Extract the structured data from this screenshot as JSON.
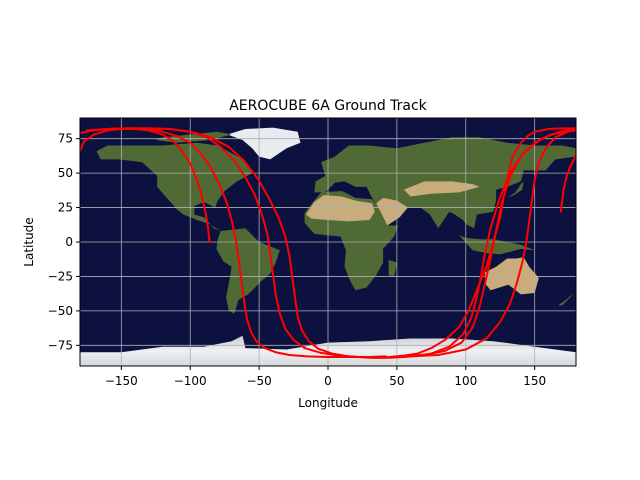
{
  "chart_data": {
    "type": "line",
    "title": "AEROCUBE 6A Ground Track",
    "xlabel": "Longitude",
    "ylabel": "Latitude",
    "xlim": [
      -180,
      180
    ],
    "ylim": [
      -90,
      90
    ],
    "xticks": [
      -150,
      -100,
      -50,
      0,
      50,
      100,
      150
    ],
    "yticks": [
      -75,
      -50,
      -25,
      0,
      25,
      50,
      75
    ],
    "grid": true,
    "background": "world satellite map (Blue Marble)",
    "colors": {
      "track": "#ff0000",
      "ocean": "#0c1140",
      "land": "#4f6a34",
      "desert": "#c9ac7c",
      "ice": "#e8ecf0",
      "grid": "#b0b0b0"
    },
    "series": [
      {
        "x": [
          -180,
          -177,
          -170,
          -160,
          -150,
          -140,
          -130,
          -120,
          -112,
          -106,
          -100,
          -96,
          -92,
          -89,
          -87,
          -86
        ],
        "y": [
          66,
          73,
          78,
          81,
          82,
          82,
          81,
          78,
          73,
          66,
          57,
          47,
          35,
          22,
          10,
          0
        ]
      },
      {
        "x": [
          -180,
          -170,
          -160,
          -150,
          -140,
          -130,
          -120,
          -110,
          -100,
          -92,
          -85,
          -79,
          -74,
          -70,
          -67,
          -65,
          -63,
          -61,
          -59,
          -56,
          -52,
          -46,
          -38,
          -28,
          -15,
          0,
          15,
          30,
          42
        ],
        "y": [
          79,
          81,
          82,
          82.5,
          82.5,
          82,
          80,
          77,
          72,
          64,
          54,
          42,
          30,
          16,
          2,
          -12,
          -27,
          -42,
          -55,
          -65,
          -72,
          -77,
          -80,
          -82,
          -83,
          -83.5,
          -83.5,
          -83.5,
          -83
        ]
      },
      {
        "x": [
          -175,
          -160,
          -145,
          -130,
          -115,
          -100,
          -88,
          -78,
          -68,
          -60,
          -53,
          -48,
          -44,
          -42,
          -40,
          -38,
          -35,
          -31,
          -25,
          -17,
          -5,
          8,
          22,
          35,
          45,
          55,
          65,
          75,
          85,
          95,
          102,
          108,
          115,
          120,
          125,
          128,
          131,
          134,
          140,
          145,
          150,
          160,
          170,
          180
        ],
        "y": [
          81,
          82,
          82.5,
          82.5,
          82,
          80,
          76,
          69,
          59,
          47,
          34,
          20,
          6,
          -8,
          -23,
          -38,
          -52,
          -63,
          -71,
          -77,
          -80.5,
          -82.5,
          -83.5,
          -84,
          -83.5,
          -82.5,
          -81,
          -77,
          -71,
          -62,
          -50,
          -35,
          -18,
          0,
          18,
          35,
          50,
          62,
          72,
          77,
          80,
          82,
          82.5,
          82.5
        ]
      },
      {
        "x": [
          -160,
          -145,
          -130,
          -115,
          -100,
          -85,
          -72,
          -61,
          -51,
          -43,
          -36,
          -31,
          -28,
          -26,
          -24,
          -22,
          -19,
          -14,
          -7,
          3,
          15,
          30,
          45,
          60,
          75,
          88,
          98,
          104,
          108,
          111,
          114,
          118,
          124,
          132,
          142,
          155,
          168,
          180
        ],
        "y": [
          82,
          82.5,
          82.5,
          82,
          80,
          76,
          69,
          59,
          46,
          32,
          18,
          4,
          -10,
          -25,
          -40,
          -54,
          -64,
          -72,
          -77.5,
          -81,
          -83,
          -84,
          -84,
          -83,
          -81,
          -76,
          -67,
          -55,
          -40,
          -25,
          -8,
          10,
          30,
          50,
          65,
          75,
          80,
          82
        ]
      },
      {
        "x": [
          180,
          176,
          173,
          171,
          170,
          169
        ],
        "y": [
          63,
          55,
          47,
          38,
          30,
          22
        ]
      },
      {
        "x": [
          38,
          55,
          70,
          85,
          97,
          105,
          110,
          114,
          118,
          122,
          126,
          132,
          140,
          150,
          162,
          175,
          180
        ],
        "y": [
          -84,
          -83.5,
          -82,
          -79,
          -73,
          -62,
          -47,
          -30,
          -12,
          8,
          28,
          47,
          62,
          72,
          78,
          80.5,
          81
        ]
      },
      {
        "x": [
          60,
          80,
          100,
          115,
          125,
          132,
          137,
          141,
          144,
          146,
          148,
          150,
          153,
          158,
          165,
          175,
          180
        ],
        "y": [
          -83,
          -82,
          -78,
          -70,
          -58,
          -45,
          -30,
          -15,
          0,
          15,
          30,
          45,
          58,
          68,
          76,
          80.5,
          81.5
        ]
      }
    ]
  }
}
